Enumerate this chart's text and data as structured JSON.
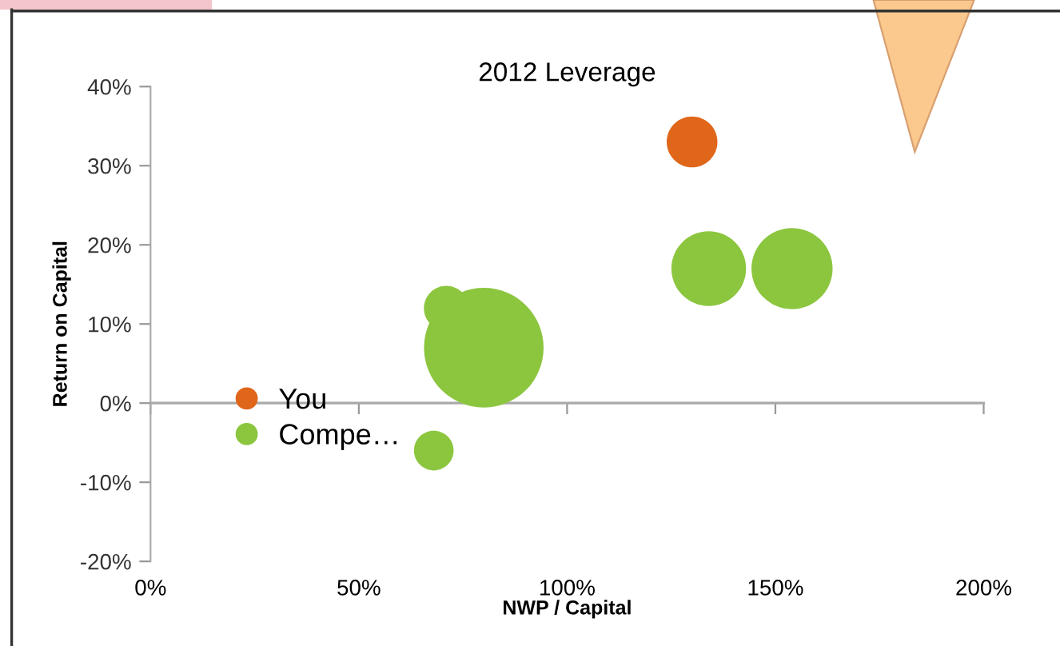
{
  "chart_data": {
    "type": "bubble",
    "title": "2012 Leverage",
    "xlabel": "NWP / Capital",
    "ylabel": "Return on Capital",
    "xlim": [
      0,
      200
    ],
    "xticks": [
      {
        "value": 0,
        "label": "0%"
      },
      {
        "value": 50,
        "label": "50%"
      },
      {
        "value": 100,
        "label": "100%"
      },
      {
        "value": 150,
        "label": "150%"
      },
      {
        "value": 200,
        "label": "200%"
      }
    ],
    "ylim": [
      -20,
      40
    ],
    "yticks": [
      {
        "value": -20,
        "label": "-20%"
      },
      {
        "value": -10,
        "label": "-10%"
      },
      {
        "value": 0,
        "label": "0%"
      },
      {
        "value": 10,
        "label": "10%"
      },
      {
        "value": 20,
        "label": "20%"
      },
      {
        "value": 30,
        "label": "30%"
      },
      {
        "value": 40,
        "label": "40%"
      }
    ],
    "series": [
      {
        "name": "You",
        "color": "#e0661a",
        "x": [
          130
        ],
        "values": [
          33
        ],
        "sizes": [
          0.18
        ]
      },
      {
        "name": "Compe…",
        "color": "#8cc63f",
        "x": [
          71,
          80,
          134,
          154,
          68
        ],
        "values": [
          12,
          7,
          17,
          17,
          -6
        ],
        "sizes": [
          0.14,
          1,
          0.39,
          0.46,
          0.11
        ]
      }
    ],
    "legend": "left"
  }
}
